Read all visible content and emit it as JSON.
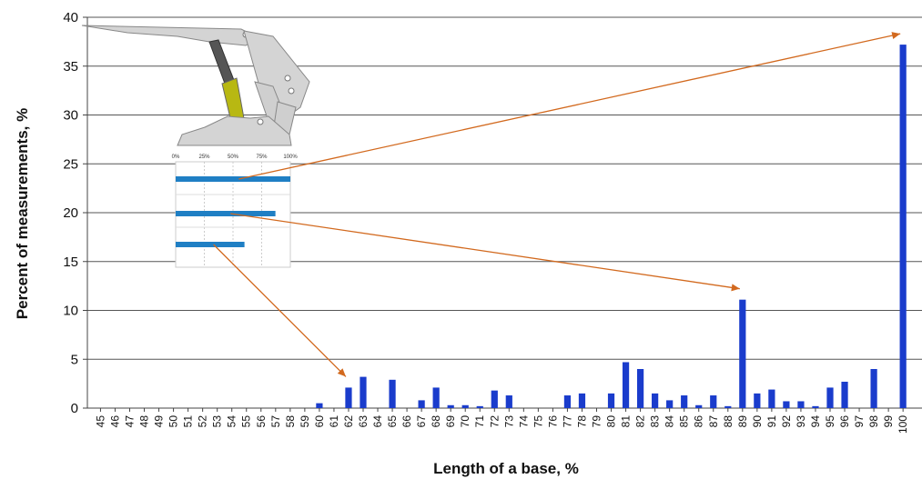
{
  "chart_data": {
    "type": "bar",
    "xlabel": "Length of a base,  %",
    "ylabel": "Percent of measurements, %",
    "ylim": [
      0,
      40
    ],
    "yticks": [
      0,
      5,
      10,
      15,
      20,
      25,
      30,
      35,
      40
    ],
    "grid": "horizontal",
    "bar_color": "#1a3ccc",
    "categories": [
      "45",
      "46",
      "47",
      "48",
      "49",
      "50",
      "51",
      "52",
      "53",
      "54",
      "55",
      "56",
      "57",
      "58",
      "59",
      "60",
      "61",
      "62",
      "63",
      "64",
      "65",
      "66",
      "67",
      "68",
      "69",
      "70",
      "71",
      "72",
      "73",
      "74",
      "75",
      "76",
      "77",
      "78",
      "79",
      "80",
      "81",
      "82",
      "83",
      "84",
      "85",
      "86",
      "87",
      "88",
      "89",
      "90",
      "91",
      "92",
      "93",
      "94",
      "95",
      "96",
      "97",
      "98",
      "99",
      "100"
    ],
    "values": [
      0,
      0,
      0,
      0,
      0,
      0,
      0,
      0,
      0,
      0,
      0,
      0,
      0,
      0,
      0,
      0.5,
      0,
      2.1,
      3.2,
      0,
      2.9,
      0,
      0.8,
      2.1,
      0.3,
      0.3,
      0.2,
      1.8,
      1.3,
      0,
      0,
      0,
      1.3,
      1.5,
      0,
      1.5,
      4.7,
      4.0,
      1.5,
      0.8,
      1.3,
      0.3,
      1.3,
      0.2,
      11.1,
      1.5,
      1.9,
      0.7,
      0.7,
      0.2,
      2.1,
      2.7,
      0,
      4.0,
      0,
      37.2
    ],
    "inset": {
      "description_icon": "excavator-arm-diagram",
      "scale_labels": [
        "0%",
        "25%",
        "50%",
        "75%",
        "100%"
      ],
      "bars": [
        {
          "fraction": 1.0,
          "points_to": "100"
        },
        {
          "fraction": 0.87,
          "points_to": "89"
        },
        {
          "fraction": 0.6,
          "points_to": "62"
        }
      ],
      "inset_bar_color": "#1f7fc4",
      "arrow_color": "#d2691e"
    }
  }
}
